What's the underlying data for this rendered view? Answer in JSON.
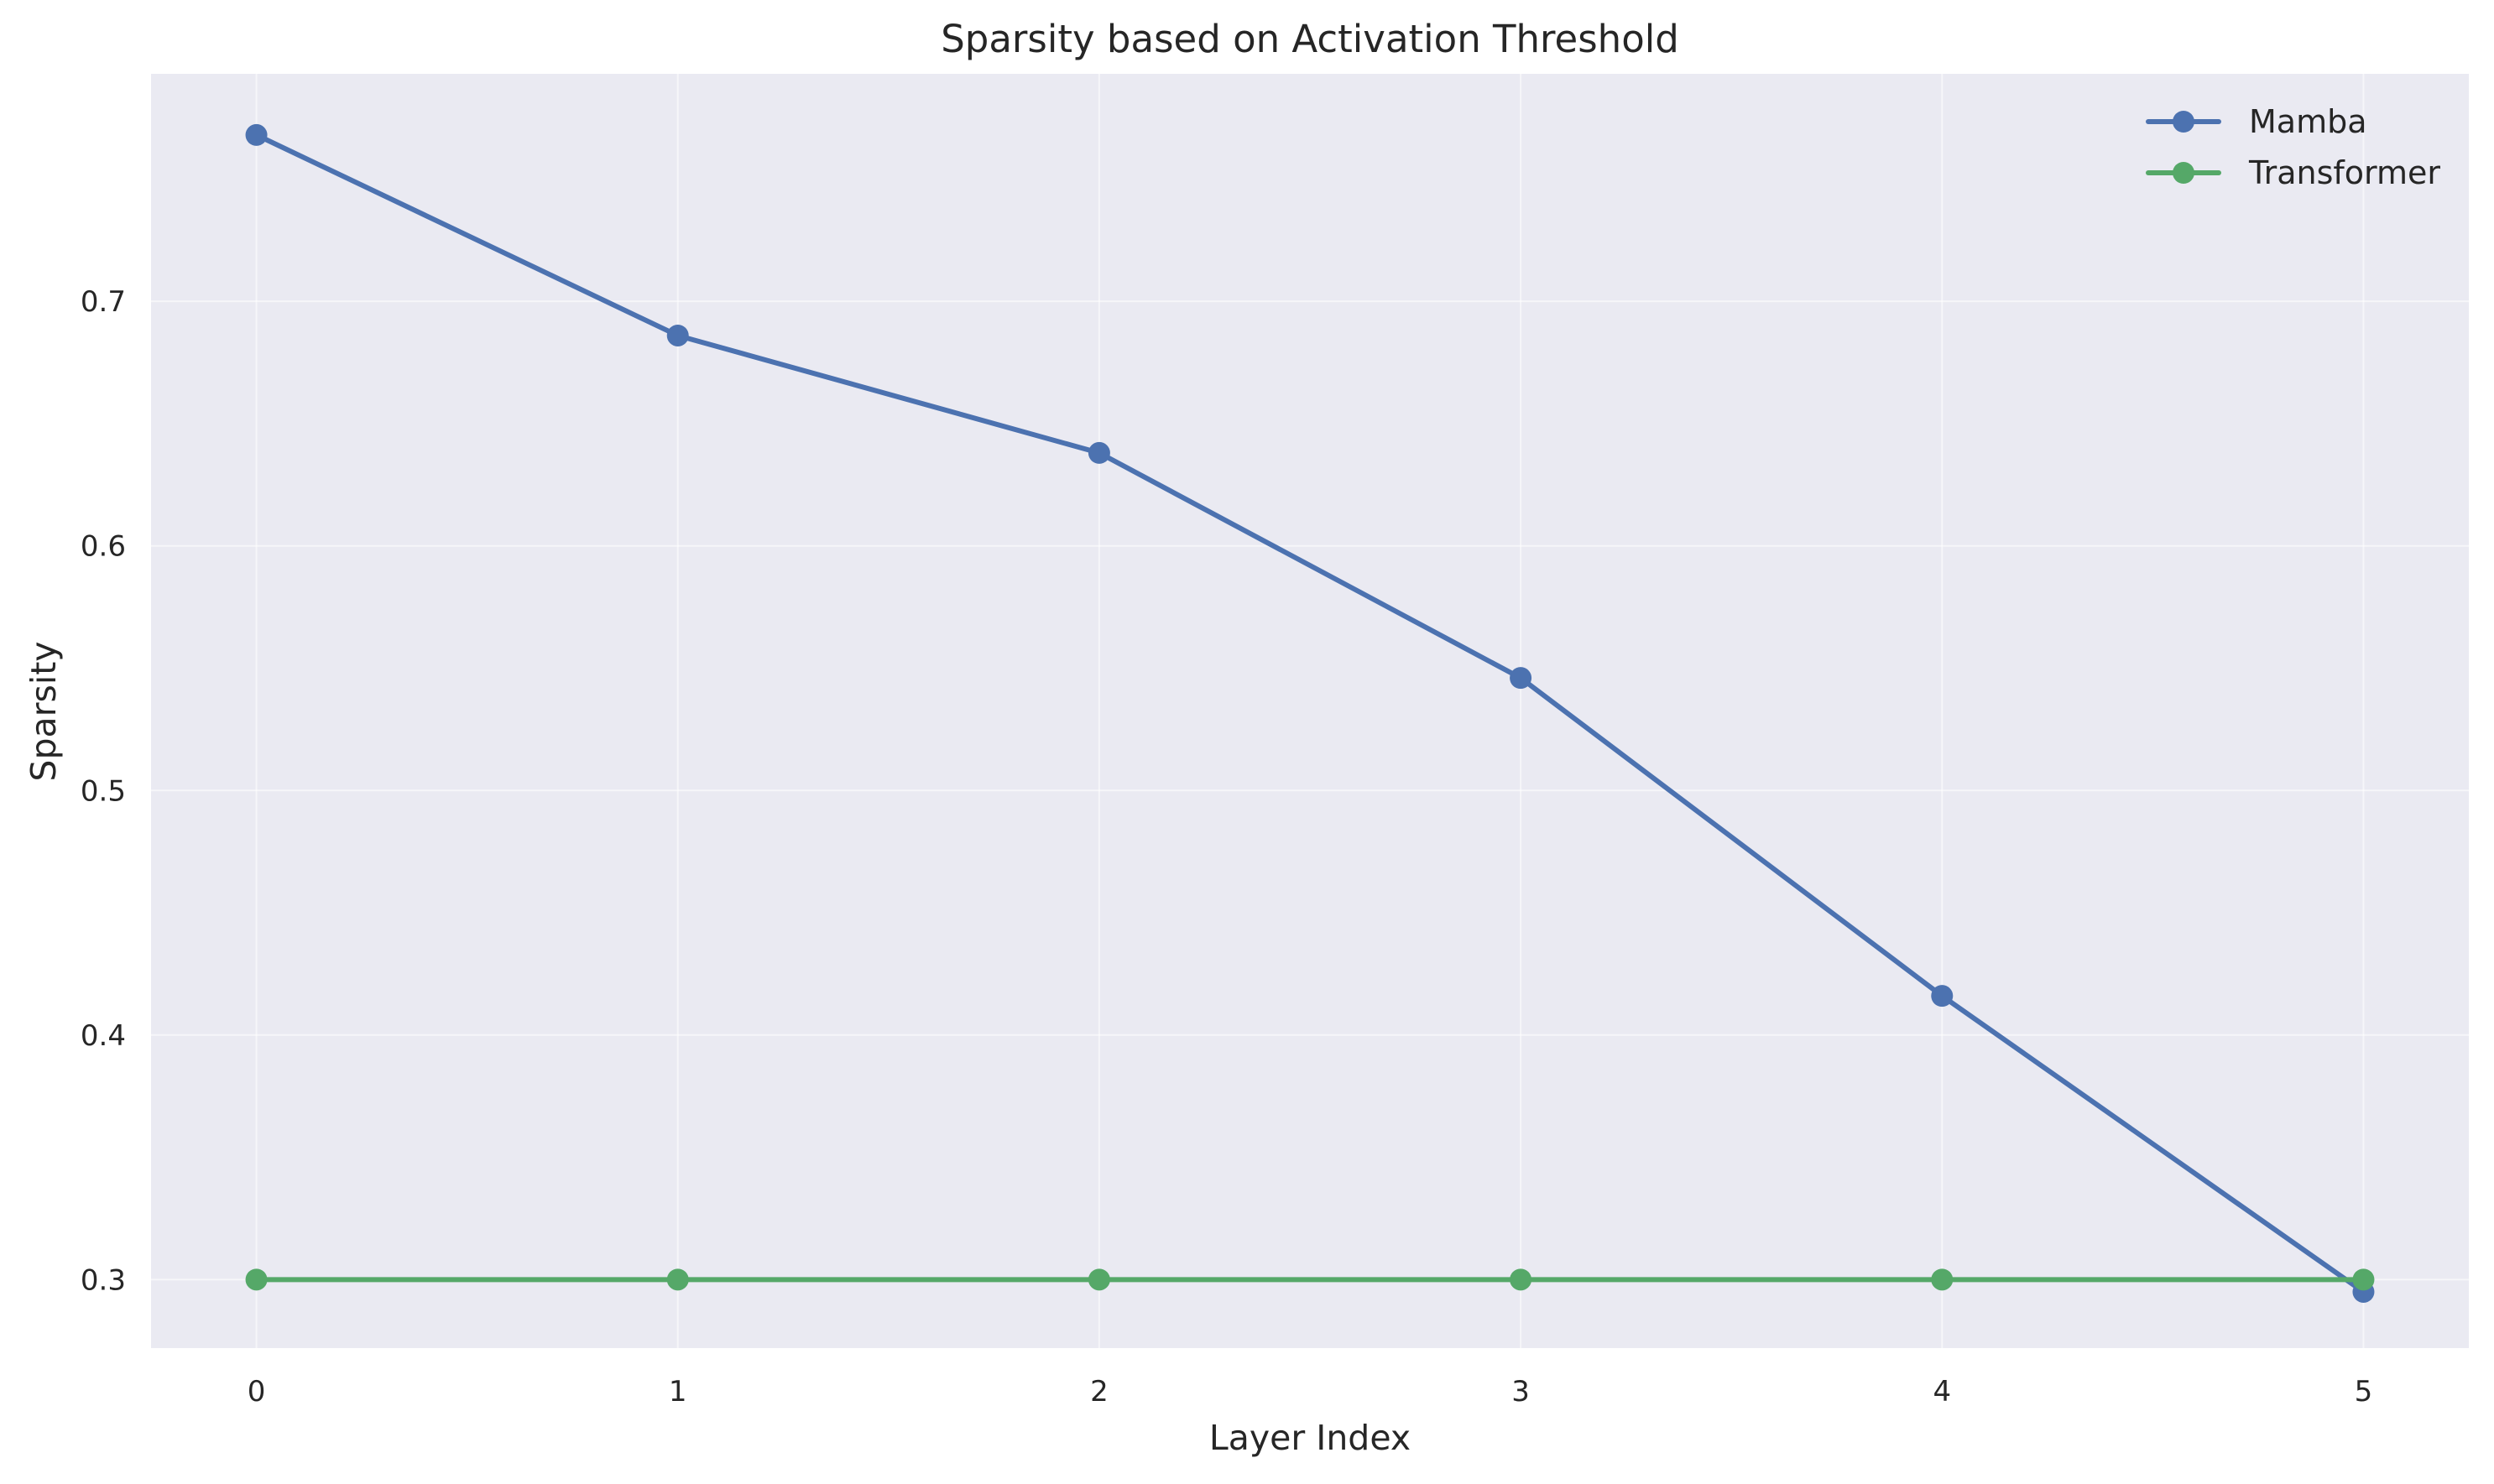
{
  "chart_data": {
    "type": "line",
    "title": "Sparsity based on Activation Threshold",
    "xlabel": "Layer Index",
    "ylabel": "Sparsity",
    "x": [
      0,
      1,
      2,
      3,
      4,
      5
    ],
    "xlim": [
      -0.25,
      5.25
    ],
    "ylim": [
      0.272,
      0.793
    ],
    "yticks": [
      0.3,
      0.4,
      0.5,
      0.6,
      0.7
    ],
    "ytick_labels": [
      "0.3",
      "0.4",
      "0.5",
      "0.6",
      "0.7"
    ],
    "xticks": [
      0,
      1,
      2,
      3,
      4,
      5
    ],
    "xtick_labels": [
      "0",
      "1",
      "2",
      "3",
      "4",
      "5"
    ],
    "grid": true,
    "legend_position": "top-right",
    "series": [
      {
        "name": "Mamba",
        "color": "#4c72b0",
        "marker": "circle",
        "values": [
          0.768,
          0.686,
          0.638,
          0.546,
          0.416,
          0.295
        ]
      },
      {
        "name": "Transformer",
        "color": "#55a868",
        "marker": "circle",
        "values": [
          0.3,
          0.3,
          0.3,
          0.3,
          0.3,
          0.3
        ]
      }
    ],
    "colors": {
      "plot_background": "#eaeaf2",
      "grid": "#ffffff",
      "text": "#262626"
    }
  }
}
